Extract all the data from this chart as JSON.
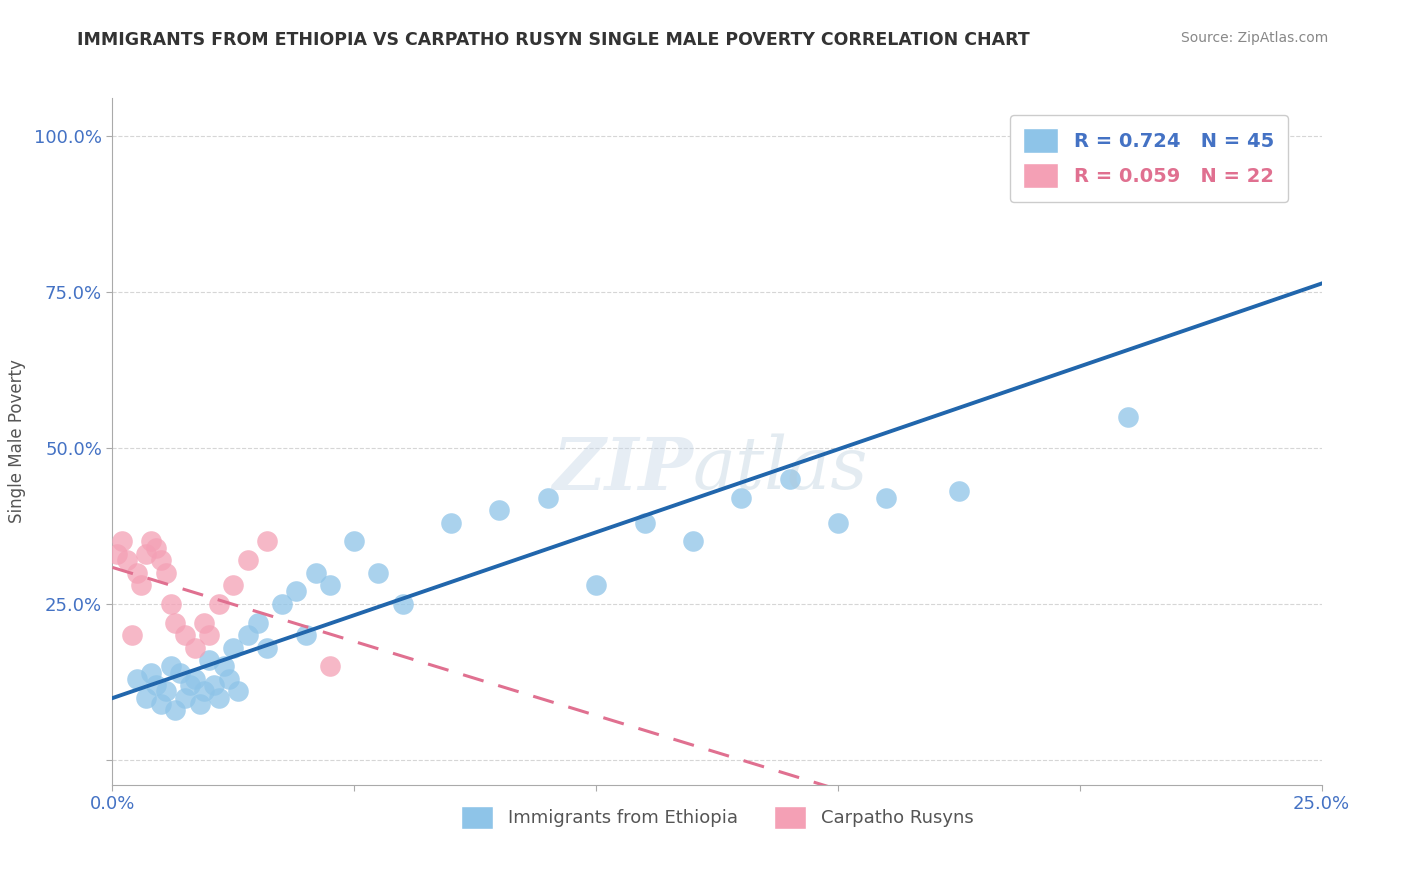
{
  "title": "IMMIGRANTS FROM ETHIOPIA VS CARPATHO RUSYN SINGLE MALE POVERTY CORRELATION CHART",
  "source": "Source: ZipAtlas.com",
  "ylabel": "Single Male Poverty",
  "color_blue": "#8ec4e8",
  "color_pink": "#f4a0b5",
  "color_blue_line": "#2166ac",
  "color_pink_line": "#e07090",
  "color_axis": "#4472c4",
  "legend_r1": "R = 0.724",
  "legend_n1": "N = 45",
  "legend_r2": "R = 0.059",
  "legend_n2": "N = 22",
  "xlim": [
    0.0,
    0.25
  ],
  "ylim": [
    -0.04,
    1.06
  ],
  "yticks": [
    0.0,
    0.25,
    0.5,
    0.75,
    1.0
  ],
  "ytick_labels": [
    "",
    "25.0%",
    "50.0%",
    "75.0%",
    "100.0%"
  ],
  "xticks": [
    0.0,
    0.05,
    0.1,
    0.15,
    0.2,
    0.25
  ],
  "xtick_labels": [
    "0.0%",
    "",
    "",
    "",
    "",
    "25.0%"
  ],
  "ethiopia_x": [
    0.005,
    0.007,
    0.008,
    0.009,
    0.01,
    0.011,
    0.012,
    0.013,
    0.014,
    0.015,
    0.016,
    0.017,
    0.018,
    0.019,
    0.02,
    0.021,
    0.022,
    0.023,
    0.024,
    0.025,
    0.026,
    0.028,
    0.03,
    0.032,
    0.035,
    0.038,
    0.04,
    0.042,
    0.045,
    0.05,
    0.055,
    0.06,
    0.07,
    0.08,
    0.09,
    0.1,
    0.11,
    0.12,
    0.13,
    0.14,
    0.15,
    0.16,
    0.175,
    0.21,
    0.22
  ],
  "ethiopia_y": [
    0.13,
    0.1,
    0.14,
    0.12,
    0.09,
    0.11,
    0.15,
    0.08,
    0.14,
    0.1,
    0.12,
    0.13,
    0.09,
    0.11,
    0.16,
    0.12,
    0.1,
    0.15,
    0.13,
    0.18,
    0.11,
    0.2,
    0.22,
    0.18,
    0.25,
    0.27,
    0.2,
    0.3,
    0.28,
    0.35,
    0.3,
    0.25,
    0.38,
    0.4,
    0.42,
    0.28,
    0.38,
    0.35,
    0.42,
    0.45,
    0.38,
    0.42,
    0.43,
    0.55,
    1.0
  ],
  "rusyn_x": [
    0.001,
    0.002,
    0.003,
    0.004,
    0.005,
    0.006,
    0.007,
    0.008,
    0.009,
    0.01,
    0.011,
    0.012,
    0.013,
    0.015,
    0.017,
    0.019,
    0.02,
    0.022,
    0.025,
    0.028,
    0.032,
    0.045
  ],
  "rusyn_y": [
    0.33,
    0.35,
    0.32,
    0.2,
    0.3,
    0.28,
    0.33,
    0.35,
    0.34,
    0.32,
    0.3,
    0.25,
    0.22,
    0.2,
    0.18,
    0.22,
    0.2,
    0.25,
    0.28,
    0.32,
    0.35,
    0.15
  ],
  "legend1_label": "Immigrants from Ethiopia",
  "legend2_label": "Carpatho Rusyns"
}
